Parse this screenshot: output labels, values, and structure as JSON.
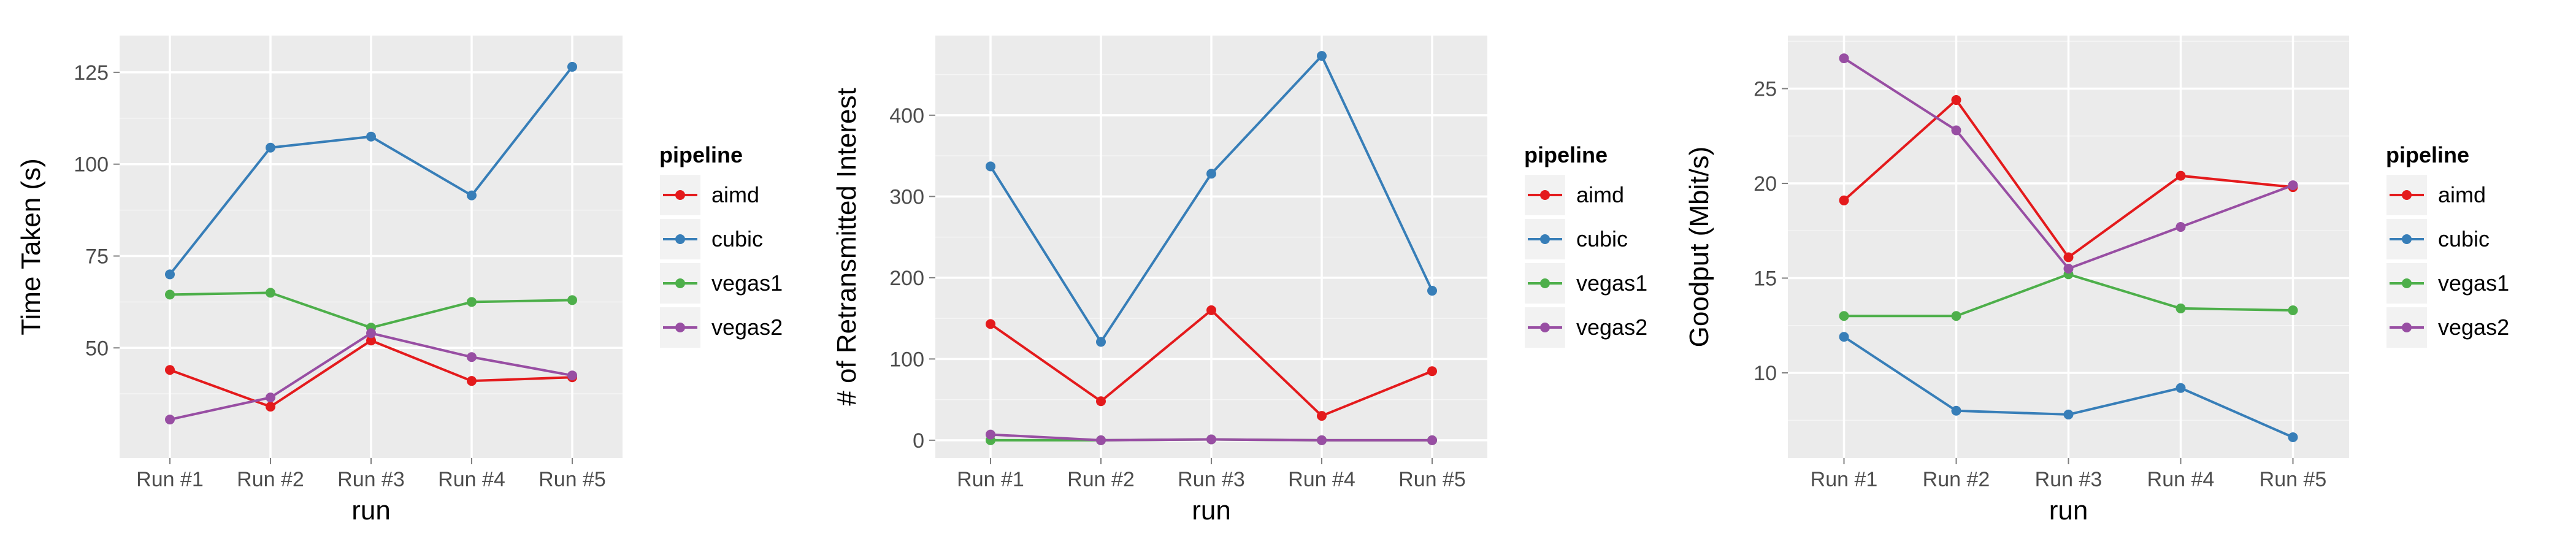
{
  "chart_data": [
    {
      "type": "line",
      "categories": [
        "Run #1",
        "Run #2",
        "Run #3",
        "Run #4",
        "Run #5"
      ],
      "xlabel": "run",
      "ylabel": "Time Taken (s)",
      "ylim": [
        20,
        135
      ],
      "yticks": [
        50,
        75,
        100,
        125
      ],
      "grid": true,
      "legend_title": "pipeline",
      "series": [
        {
          "name": "aimd",
          "color": "#e41a1c",
          "values": [
            44,
            34,
            52,
            41,
            42
          ]
        },
        {
          "name": "cubic",
          "color": "#377eb8",
          "values": [
            70,
            104.5,
            107.5,
            91.5,
            126.5
          ]
        },
        {
          "name": "vegas1",
          "color": "#4daf4a",
          "values": [
            64.5,
            65,
            55.5,
            62.5,
            63
          ]
        },
        {
          "name": "vegas2",
          "color": "#984ea3",
          "values": [
            30.5,
            36.5,
            54,
            47.5,
            42.5
          ]
        }
      ]
    },
    {
      "type": "line",
      "categories": [
        "Run #1",
        "Run #2",
        "Run #3",
        "Run #4",
        "Run #5"
      ],
      "xlabel": "run",
      "ylabel": "# of Retransmitted Interest",
      "ylim": [
        -22,
        498
      ],
      "yticks": [
        0,
        100,
        200,
        300,
        400
      ],
      "grid": true,
      "legend_title": "pipeline",
      "series": [
        {
          "name": "aimd",
          "color": "#e41a1c",
          "values": [
            143,
            48,
            160,
            30,
            85
          ]
        },
        {
          "name": "cubic",
          "color": "#377eb8",
          "values": [
            337,
            121,
            328,
            473,
            184
          ]
        },
        {
          "name": "vegas1",
          "color": "#4daf4a",
          "values": [
            0,
            0,
            1,
            0,
            0
          ]
        },
        {
          "name": "vegas2",
          "color": "#984ea3",
          "values": [
            7,
            0,
            1,
            0,
            0
          ]
        }
      ]
    },
    {
      "type": "line",
      "categories": [
        "Run #1",
        "Run #2",
        "Run #3",
        "Run #4",
        "Run #5"
      ],
      "xlabel": "run",
      "ylabel": "Goodput (Mbit/s)",
      "ylim": [
        5.5,
        27.8
      ],
      "yticks": [
        10,
        15,
        20,
        25
      ],
      "grid": true,
      "legend_title": "pipeline",
      "series": [
        {
          "name": "aimd",
          "color": "#e41a1c",
          "values": [
            19.1,
            24.4,
            16.1,
            20.4,
            19.8
          ]
        },
        {
          "name": "cubic",
          "color": "#377eb8",
          "values": [
            11.9,
            8.0,
            7.8,
            9.2,
            6.6
          ]
        },
        {
          "name": "vegas1",
          "color": "#4daf4a",
          "values": [
            13.0,
            13.0,
            15.2,
            13.4,
            13.3
          ]
        },
        {
          "name": "vegas2",
          "color": "#984ea3",
          "values": [
            26.6,
            22.8,
            15.5,
            17.7,
            19.9
          ]
        }
      ]
    }
  ]
}
